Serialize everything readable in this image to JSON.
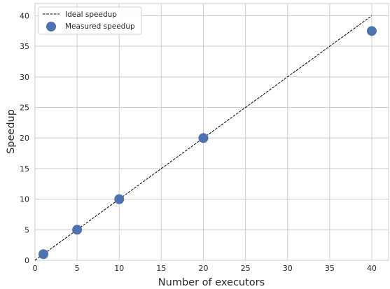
{
  "chart_data": {
    "type": "scatter",
    "xlabel": "Number of executors",
    "ylabel": "Speedup",
    "xlim": [
      0,
      42
    ],
    "ylim": [
      0,
      42
    ],
    "xticks": [
      0,
      5,
      10,
      15,
      20,
      25,
      30,
      35,
      40
    ],
    "yticks": [
      0,
      5,
      10,
      15,
      20,
      25,
      30,
      35,
      40
    ],
    "grid": true,
    "legend_position": "top-left",
    "series": [
      {
        "name": "Ideal speedup",
        "kind": "line",
        "style": "dashed",
        "color": "#000000",
        "x": [
          0,
          40
        ],
        "y": [
          0,
          40
        ]
      },
      {
        "name": "Measured speedup",
        "kind": "scatter",
        "color": "#4c72b0",
        "x": [
          1,
          5,
          10,
          20,
          40
        ],
        "y": [
          1.0,
          5.0,
          10.0,
          20.0,
          37.5
        ]
      }
    ]
  }
}
